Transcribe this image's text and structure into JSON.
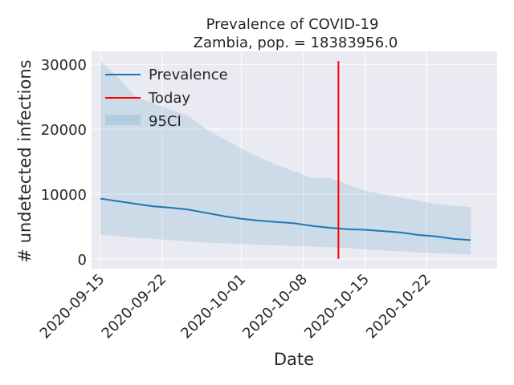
{
  "chart_data": {
    "type": "line",
    "title": "Prevalence of COVID-19",
    "subtitle": "Zambia, pop. = 18383956.0",
    "xlabel": "Date",
    "ylabel": "# undetected infections",
    "x_ticks": [
      "2020-09-15",
      "2020-09-22",
      "2020-10-01",
      "2020-10-08",
      "2020-10-15",
      "2020-10-22"
    ],
    "y_ticks": [
      "0",
      "10000",
      "20000",
      "30000"
    ],
    "xlim": [
      "2020-09-14",
      "2020-10-30"
    ],
    "ylim": [
      -1500,
      32000
    ],
    "grid": true,
    "legend_position": "top-left",
    "today": "2020-10-12",
    "series": [
      {
        "name": "Prevalence",
        "color": "#1f77b4",
        "x": [
          "2020-09-15",
          "2020-09-17",
          "2020-09-19",
          "2020-09-21",
          "2020-09-23",
          "2020-09-25",
          "2020-09-27",
          "2020-09-29",
          "2020-10-01",
          "2020-10-03",
          "2020-10-05",
          "2020-10-07",
          "2020-10-09",
          "2020-10-11",
          "2020-10-13",
          "2020-10-15",
          "2020-10-17",
          "2020-10-19",
          "2020-10-21",
          "2020-10-23",
          "2020-10-25",
          "2020-10-27"
        ],
        "values": [
          9300,
          8900,
          8500,
          8100,
          7900,
          7600,
          7100,
          6600,
          6200,
          5900,
          5700,
          5500,
          5100,
          4800,
          4600,
          4500,
          4300,
          4100,
          3700,
          3500,
          3100,
          2900
        ]
      },
      {
        "name": "Today",
        "color": "#ff0000",
        "x": [
          "2020-10-12",
          "2020-10-12"
        ],
        "values": [
          0,
          30500
        ]
      }
    ],
    "band": {
      "name": "95CI",
      "color": "#1f77b4",
      "x": [
        "2020-09-15",
        "2020-09-17",
        "2020-09-19",
        "2020-09-21",
        "2020-09-23",
        "2020-09-25",
        "2020-09-27",
        "2020-09-29",
        "2020-10-01",
        "2020-10-03",
        "2020-10-05",
        "2020-10-07",
        "2020-10-09",
        "2020-10-11",
        "2020-10-13",
        "2020-10-15",
        "2020-10-17",
        "2020-10-19",
        "2020-10-21",
        "2020-10-23",
        "2020-10-25",
        "2020-10-27"
      ],
      "upper": [
        30500,
        28000,
        25000,
        24000,
        23000,
        22000,
        20000,
        18500,
        17000,
        15700,
        14500,
        13500,
        12500,
        12500,
        11500,
        10500,
        10000,
        9500,
        9000,
        8500,
        8200,
        8000
      ],
      "lower": [
        3700,
        3500,
        3300,
        3100,
        2900,
        2700,
        2500,
        2400,
        2300,
        2200,
        2100,
        2000,
        1900,
        1800,
        1700,
        1500,
        1300,
        1200,
        1000,
        900,
        800,
        700
      ]
    }
  }
}
